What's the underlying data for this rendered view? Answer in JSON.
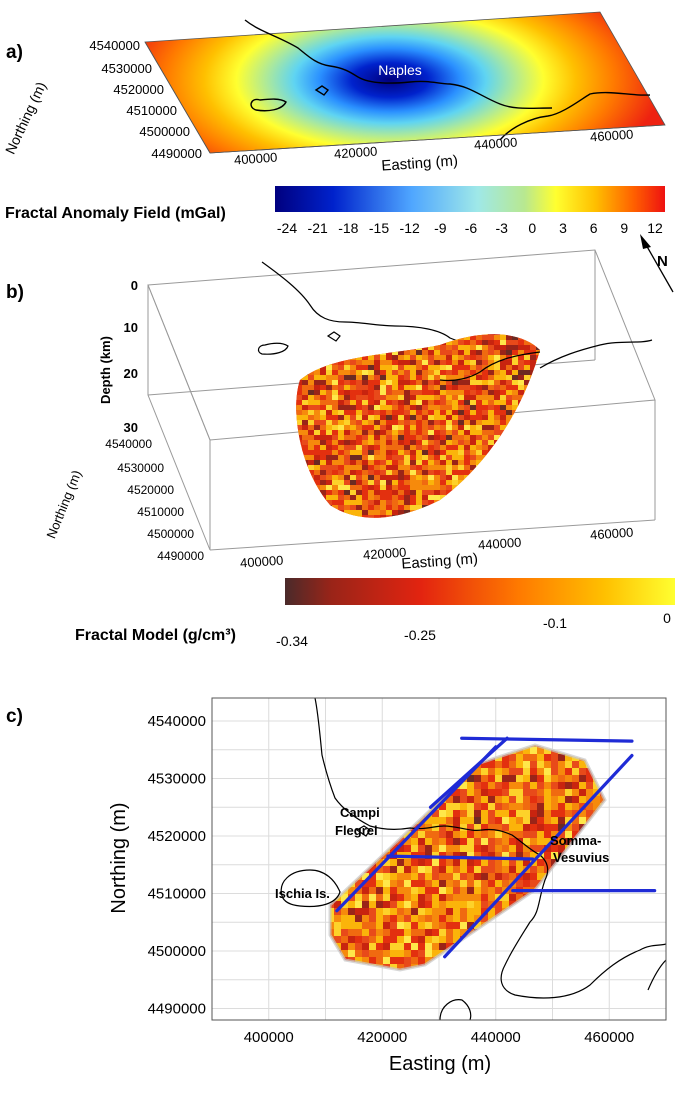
{
  "panels": {
    "a": {
      "label": "a)",
      "city_label": "Naples",
      "xlabel": "Easting (m)",
      "ylabel": "Northing (m)",
      "xticks": [
        "400000",
        "420000",
        "440000",
        "460000"
      ],
      "yticks": [
        "4540000",
        "4530000",
        "4520000",
        "4510000",
        "4500000",
        "4490000"
      ],
      "colorbar_title": "Fractal Anomaly Field (mGal)",
      "colorbar_ticks": [
        "-24",
        "-21",
        "-18",
        "-15",
        "-12",
        "-9",
        "-6",
        "-3",
        "0",
        "3",
        "6",
        "9",
        "12"
      ],
      "colorbar_range": [
        -24,
        12
      ]
    },
    "north_arrow": {
      "label": "N"
    },
    "b": {
      "label": "b)",
      "zlabel": "Depth (km)",
      "zticks": [
        "0",
        "10",
        "20",
        "30"
      ],
      "xlabel": "Easting (m)",
      "ylabel": "Northing (m)",
      "xticks": [
        "400000",
        "420000",
        "440000",
        "460000"
      ],
      "yticks": [
        "4540000",
        "4530000",
        "4520000",
        "4510000",
        "4500000",
        "4490000"
      ],
      "colorbar_title": "Fractal Model (g/cm³)",
      "colorbar_ticks": [
        "-0.34",
        "-0.25",
        "-0.1",
        "0"
      ],
      "colorbar_range": [
        -0.34,
        0
      ]
    },
    "c": {
      "label": "c)",
      "xlabel": "Easting (m)",
      "ylabel": "Northing (m)",
      "xticks": [
        "400000",
        "420000",
        "440000",
        "460000"
      ],
      "yticks": [
        "4540000",
        "4530000",
        "4520000",
        "4510000",
        "4500000",
        "4490000"
      ],
      "places": {
        "campi_1": "Campi",
        "campi_2": "Flegrei",
        "somma_1": "Somma-",
        "somma_2": "Vesuvius",
        "ischia": "Ischia Is."
      }
    }
  },
  "colors": {
    "profile_lines": "#1f2bd6",
    "anomaly_low": "#00007f",
    "anomaly_high": "#ee2211",
    "model_low": "#4a2a2a",
    "model_high": "#ffff00"
  },
  "chart_data": [
    {
      "type": "heatmap",
      "title": "",
      "description_field": "Fractal Anomaly Field (mGal)",
      "xlabel": "Easting (m)",
      "ylabel": "Northing (m)",
      "xlim": [
        390000,
        470000
      ],
      "ylim": [
        4490000,
        4540000
      ],
      "value_range": [
        -24,
        12
      ],
      "anomaly_center": [
        425000,
        4520000
      ],
      "anomaly_min": -24
    },
    {
      "type": "heatmap",
      "title": "",
      "xlabel": "Easting (m)",
      "ylabel": "Northing (m)",
      "zlabel": "Depth (km)",
      "zlim": [
        0,
        30
      ],
      "value_range": [
        -0.34,
        0
      ]
    },
    {
      "type": "heatmap",
      "title": "",
      "xlabel": "Easting (m)",
      "ylabel": "Northing (m)",
      "xlim": [
        390000,
        470000
      ],
      "ylim": [
        4488000,
        4544000
      ],
      "grid": true,
      "profiles": [
        {
          "x": [
            434000,
            464000
          ],
          "y": [
            4537000,
            4536500
          ]
        },
        {
          "x": [
            428500,
            442000
          ],
          "y": [
            4525000,
            4537000
          ]
        },
        {
          "x": [
            412000,
            440000
          ],
          "y": [
            4507000,
            4535500
          ]
        },
        {
          "x": [
            421000,
            446500
          ],
          "y": [
            4516500,
            4516000
          ]
        },
        {
          "x": [
            431000,
            464000
          ],
          "y": [
            4499000,
            4534000
          ]
        },
        {
          "x": [
            443000,
            468000
          ],
          "y": [
            4510500,
            4510500
          ]
        }
      ]
    }
  ]
}
